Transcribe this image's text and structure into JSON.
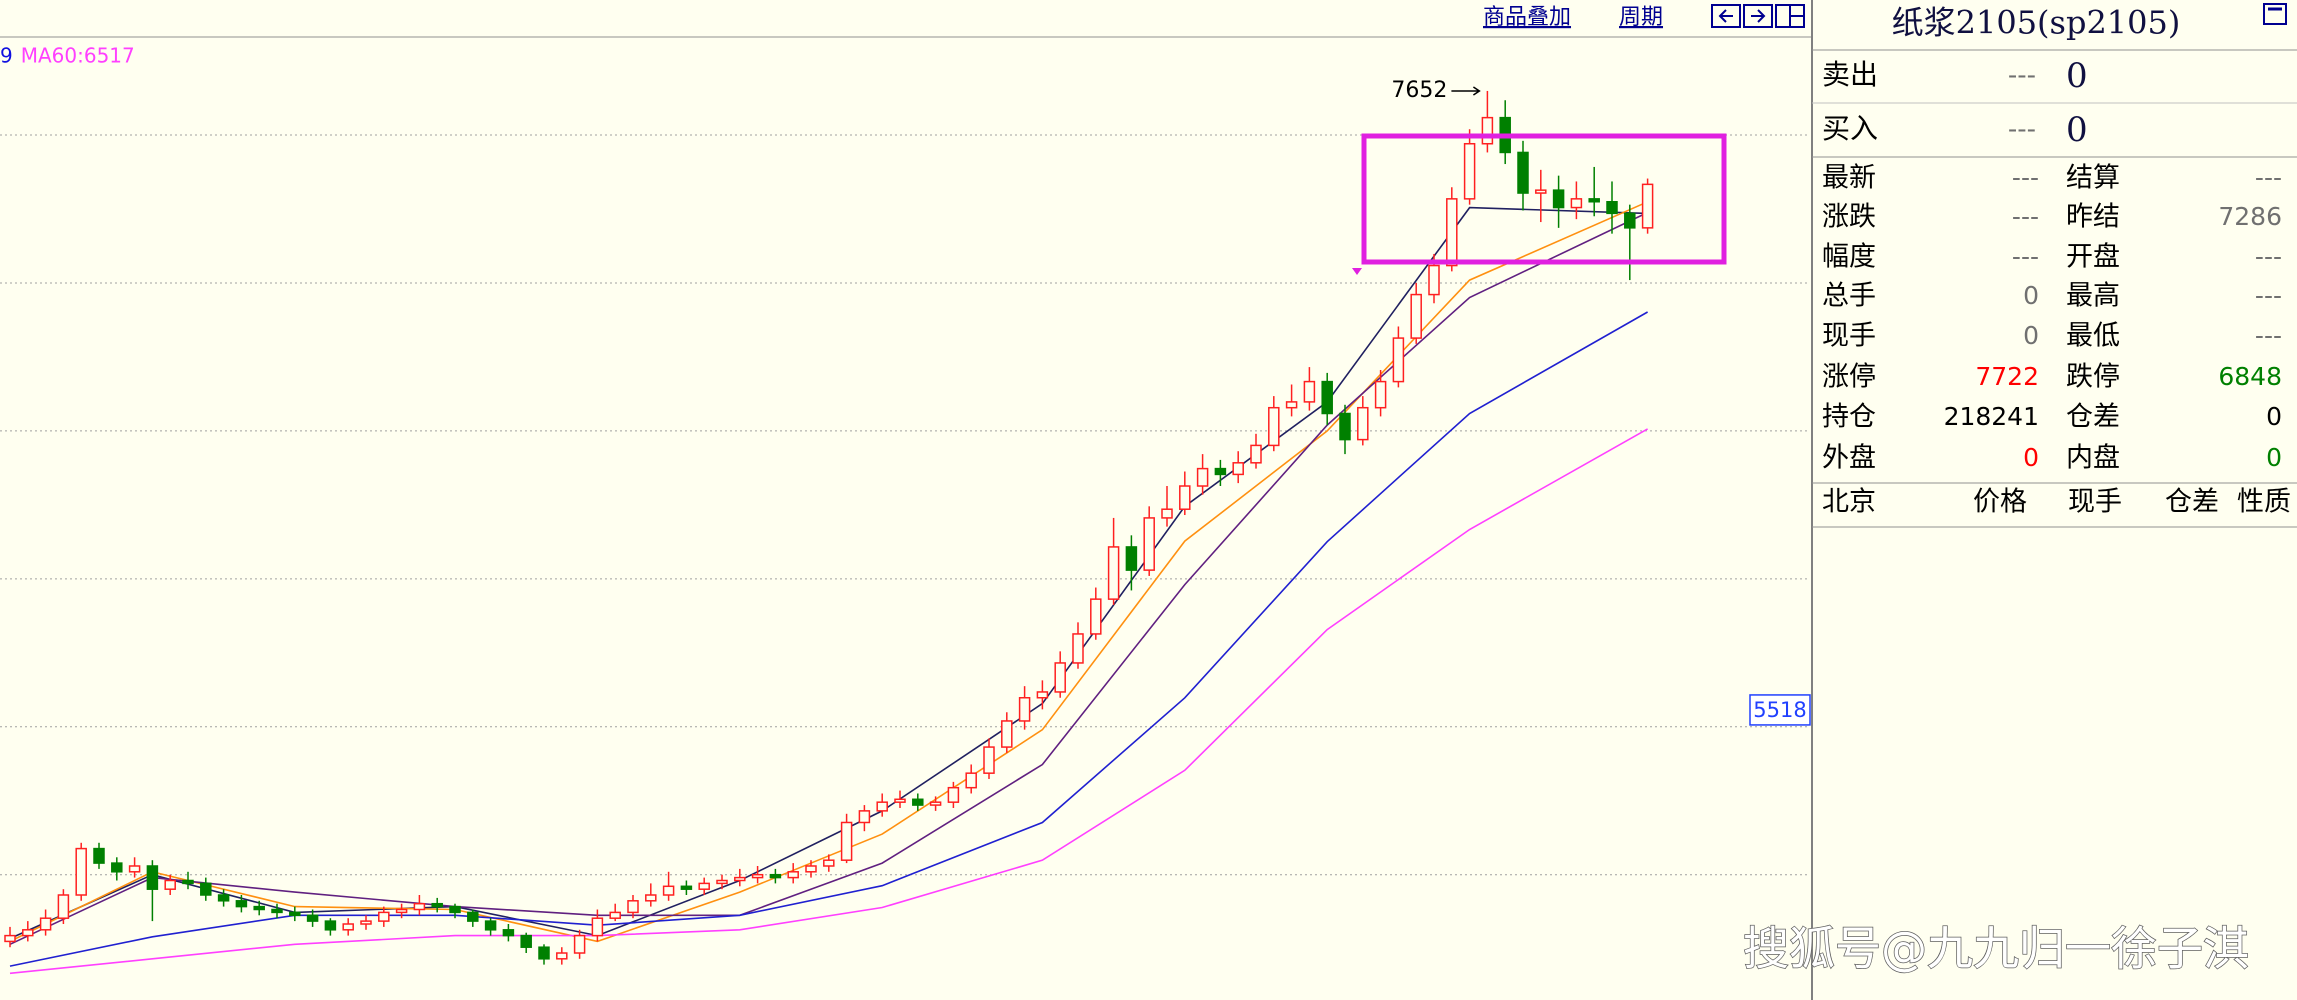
{
  "toolbar": {
    "overlay": "商品叠加",
    "period": "周期"
  },
  "chart_data": {
    "type": "candlestick",
    "legend_fragments": [
      {
        "text": "9",
        "color": "#1010e0"
      },
      {
        "text": "MA60:6517",
        "color": "#ff40ff"
      }
    ],
    "ylim": [
      4518,
      7838
    ],
    "gridlines": [
      7500,
      6990,
      6480,
      5970,
      5460,
      4950
    ],
    "up_color": "#ff2020",
    "down_color": "#008000",
    "ohlc": [
      [
        4720,
        4770,
        4700,
        4740
      ],
      [
        4740,
        4790,
        4720,
        4760
      ],
      [
        4760,
        4830,
        4740,
        4800
      ],
      [
        4800,
        4900,
        4780,
        4880
      ],
      [
        4880,
        5060,
        4860,
        5040
      ],
      [
        5040,
        5060,
        4970,
        4990
      ],
      [
        4990,
        5010,
        4930,
        4960
      ],
      [
        4960,
        5010,
        4940,
        4980
      ],
      [
        4980,
        5000,
        4790,
        4900
      ],
      [
        4900,
        4950,
        4880,
        4930
      ],
      [
        4930,
        4960,
        4900,
        4920
      ],
      [
        4920,
        4940,
        4860,
        4880
      ],
      [
        4880,
        4900,
        4840,
        4860
      ],
      [
        4860,
        4880,
        4820,
        4840
      ],
      [
        4840,
        4860,
        4810,
        4830
      ],
      [
        4830,
        4850,
        4800,
        4820
      ],
      [
        4820,
        4840,
        4790,
        4810
      ],
      [
        4810,
        4830,
        4770,
        4790
      ],
      [
        4790,
        4800,
        4740,
        4760
      ],
      [
        4760,
        4800,
        4740,
        4780
      ],
      [
        4780,
        4810,
        4760,
        4790
      ],
      [
        4790,
        4840,
        4770,
        4820
      ],
      [
        4820,
        4850,
        4800,
        4830
      ],
      [
        4830,
        4880,
        4810,
        4850
      ],
      [
        4850,
        4870,
        4820,
        4840
      ],
      [
        4840,
        4850,
        4800,
        4820
      ],
      [
        4820,
        4830,
        4770,
        4790
      ],
      [
        4790,
        4800,
        4740,
        4760
      ],
      [
        4760,
        4780,
        4720,
        4740
      ],
      [
        4740,
        4750,
        4680,
        4700
      ],
      [
        4700,
        4710,
        4640,
        4660
      ],
      [
        4660,
        4700,
        4640,
        4680
      ],
      [
        4680,
        4760,
        4660,
        4740
      ],
      [
        4740,
        4830,
        4720,
        4800
      ],
      [
        4800,
        4850,
        4790,
        4820
      ],
      [
        4820,
        4880,
        4800,
        4860
      ],
      [
        4860,
        4920,
        4840,
        4880
      ],
      [
        4880,
        4960,
        4860,
        4910
      ],
      [
        4910,
        4930,
        4880,
        4900
      ],
      [
        4900,
        4940,
        4880,
        4920
      ],
      [
        4920,
        4950,
        4900,
        4930
      ],
      [
        4930,
        4970,
        4910,
        4940
      ],
      [
        4940,
        4980,
        4920,
        4950
      ],
      [
        4950,
        4970,
        4920,
        4940
      ],
      [
        4940,
        4990,
        4920,
        4960
      ],
      [
        4960,
        5000,
        4940,
        4980
      ],
      [
        4980,
        5020,
        4960,
        5000
      ],
      [
        5000,
        5160,
        4990,
        5130
      ],
      [
        5130,
        5190,
        5100,
        5170
      ],
      [
        5170,
        5230,
        5150,
        5200
      ],
      [
        5200,
        5240,
        5180,
        5210
      ],
      [
        5210,
        5230,
        5170,
        5190
      ],
      [
        5190,
        5220,
        5170,
        5200
      ],
      [
        5200,
        5270,
        5180,
        5250
      ],
      [
        5250,
        5330,
        5230,
        5300
      ],
      [
        5300,
        5420,
        5280,
        5390
      ],
      [
        5390,
        5510,
        5370,
        5480
      ],
      [
        5480,
        5600,
        5450,
        5560
      ],
      [
        5560,
        5620,
        5520,
        5580
      ],
      [
        5580,
        5720,
        5560,
        5680
      ],
      [
        5680,
        5820,
        5660,
        5780
      ],
      [
        5780,
        5940,
        5760,
        5900
      ],
      [
        5900,
        6180,
        5880,
        6080
      ],
      [
        6080,
        6120,
        5930,
        6000
      ],
      [
        6000,
        6220,
        5980,
        6180
      ],
      [
        6180,
        6290,
        6150,
        6210
      ],
      [
        6210,
        6340,
        6190,
        6290
      ],
      [
        6290,
        6400,
        6260,
        6350
      ],
      [
        6350,
        6380,
        6290,
        6330
      ],
      [
        6330,
        6410,
        6300,
        6370
      ],
      [
        6370,
        6470,
        6350,
        6430
      ],
      [
        6430,
        6600,
        6410,
        6560
      ],
      [
        6560,
        6640,
        6530,
        6580
      ],
      [
        6580,
        6700,
        6550,
        6650
      ],
      [
        6650,
        6680,
        6500,
        6540
      ],
      [
        6540,
        6570,
        6400,
        6450
      ],
      [
        6450,
        6600,
        6430,
        6560
      ],
      [
        6560,
        6690,
        6530,
        6650
      ],
      [
        6650,
        6840,
        6630,
        6800
      ],
      [
        6800,
        6990,
        6780,
        6950
      ],
      [
        6950,
        7090,
        6920,
        7050
      ],
      [
        7050,
        7320,
        7030,
        7280
      ],
      [
        7280,
        7520,
        7260,
        7470
      ],
      [
        7470,
        7652,
        7440,
        7560
      ],
      [
        7560,
        7620,
        7400,
        7440
      ],
      [
        7440,
        7480,
        7240,
        7300
      ],
      [
        7300,
        7380,
        7200,
        7310
      ],
      [
        7310,
        7360,
        7180,
        7250
      ],
      [
        7250,
        7340,
        7210,
        7280
      ],
      [
        7280,
        7390,
        7220,
        7270
      ],
      [
        7270,
        7340,
        7160,
        7230
      ],
      [
        7230,
        7260,
        7000,
        7180
      ],
      [
        7180,
        7350,
        7160,
        7330
      ]
    ],
    "high_label_index": 83,
    "price_marker": 5518,
    "ma_x": [
      0,
      8,
      16,
      25,
      33,
      41,
      49,
      58,
      66,
      74,
      82,
      92
    ],
    "ma": [
      {
        "color": "#202060",
        "values": [
          4730,
          4950,
          4820,
          4840,
          4740,
          4930,
          5170,
          5540,
          6220,
          6580,
          7250,
          7230
        ]
      },
      {
        "color": "#ff9010",
        "values": [
          4720,
          4960,
          4840,
          4830,
          4720,
          4890,
          5090,
          5450,
          6100,
          6480,
          7000,
          7270
        ]
      },
      {
        "color": "#602080",
        "values": [
          4710,
          4940,
          4890,
          4840,
          4810,
          4810,
          4990,
          5330,
          5950,
          6500,
          6940,
          7233
        ]
      },
      {
        "color": "#2020d0",
        "values": [
          4635,
          4736,
          4810,
          4810,
          4776,
          4810,
          4912,
          5130,
          5560,
          6098,
          6540,
          6890
        ]
      },
      {
        "color": "#ff40ff",
        "values": [
          4610,
          4660,
          4710,
          4740,
          4740,
          4760,
          4837,
          5000,
          5310,
          5795,
          6140,
          6487
        ]
      }
    ]
  },
  "quote": {
    "title": "纸浆2105(sp2105)",
    "bid_ask": [
      [
        "卖出",
        "---",
        "0"
      ],
      [
        "买入",
        "---",
        "0"
      ]
    ],
    "rows": [
      [
        "最新",
        "---",
        "结算",
        "---"
      ],
      [
        "涨跌",
        "---",
        "昨结",
        "7286"
      ],
      [
        "幅度",
        "---",
        "开盘",
        "---"
      ],
      [
        "总手",
        "0",
        "最高",
        "---"
      ],
      [
        "现手",
        "0",
        "最低",
        "---"
      ],
      [
        "涨停",
        "7722",
        "跌停",
        "6848"
      ],
      [
        "持仓",
        "218241",
        "仓差",
        "0"
      ],
      [
        "外盘",
        "0",
        "内盘",
        "0"
      ]
    ],
    "ticks_header": [
      "北京",
      "价格",
      "现手",
      "仓差",
      "性质"
    ]
  },
  "watermark": "搜狐号@九九归一徐子淇"
}
